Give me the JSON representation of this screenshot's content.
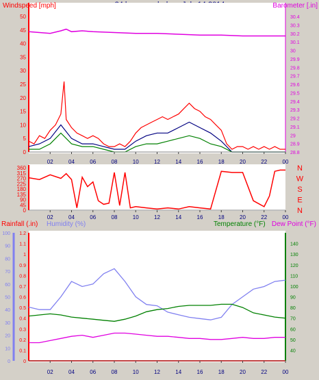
{
  "title": "24 hour graph day : July 14 2014",
  "colors": {
    "wind": "#ff0000",
    "gust_mid": "#000080",
    "wind_low": "#008000",
    "barometer": "#e000e0",
    "direction": "#ff0000",
    "rainfall": "#ff0000",
    "humidity": "#8080f0",
    "temperature": "#008000",
    "dewpoint": "#e000e0",
    "rain_dots": "#ffff00",
    "axis_labels": "#000080",
    "plot_bg": "#ffffff",
    "frame_bg": "#d4d0c8"
  },
  "chart_data": [
    {
      "type": "line",
      "name": "wind-barometer",
      "ylabel_left": "Windspeed [mph]",
      "ylabel_right": "Barometer [.in]",
      "ylim_left": [
        0,
        50
      ],
      "yticks_left": [
        0,
        5,
        10,
        15,
        20,
        25,
        30,
        35,
        40,
        45,
        50
      ],
      "ylim_right": [
        28.8,
        30.4
      ],
      "yticks_right": [
        "28.8",
        "28.9",
        "29",
        "29.1",
        "29.2",
        "29.3",
        "29.4",
        "29.5",
        "29.6",
        "29.7",
        "29.8",
        "29.9",
        "30",
        "30.1",
        "30.2",
        "30.3",
        "30.4"
      ],
      "x_ticks": [
        "02",
        "04",
        "06",
        "08",
        "10",
        "12",
        "14",
        "16",
        "18",
        "20",
        "22",
        "00"
      ],
      "series": [
        {
          "name": "Windspeed",
          "color_key": "wind",
          "x": [
            0,
            0.5,
            1,
            1.5,
            2,
            2.5,
            3,
            3.3,
            3.5,
            4,
            4.5,
            5,
            5.5,
            6,
            6.5,
            7,
            7.5,
            8,
            8.5,
            9,
            9.5,
            10,
            10.5,
            11,
            11.5,
            12,
            12.5,
            13,
            13.5,
            14,
            14.5,
            15,
            15.5,
            16,
            16.5,
            17,
            17.5,
            18,
            18.5,
            19,
            19.5,
            20,
            20.5,
            21,
            21.5,
            22,
            22.5,
            23,
            23.5,
            24
          ],
          "values": [
            4,
            3,
            6,
            5,
            8,
            10,
            14,
            26,
            12,
            9,
            7,
            6,
            5,
            6,
            5,
            3,
            2,
            2,
            3,
            2,
            4,
            7,
            9,
            10,
            11,
            12,
            13,
            12,
            13,
            14,
            16,
            18,
            16,
            15,
            13,
            12,
            10,
            8,
            3,
            1,
            2,
            2,
            1,
            2,
            1,
            2,
            1,
            2,
            1,
            1
          ]
        },
        {
          "name": "Gust average",
          "color_key": "gust_mid",
          "x": [
            0,
            1,
            2,
            3,
            4,
            5,
            6,
            7,
            8,
            9,
            10,
            11,
            12,
            13,
            14,
            15,
            16,
            17,
            18,
            19,
            20,
            21,
            22,
            23,
            24
          ],
          "values": [
            2,
            3,
            5,
            10,
            5,
            3,
            3,
            2,
            1,
            1,
            4,
            6,
            7,
            7,
            9,
            11,
            9,
            7,
            4,
            0,
            0,
            0,
            0,
            0,
            0
          ]
        },
        {
          "name": "Wind low",
          "color_key": "wind_low",
          "x": [
            0,
            1,
            2,
            3,
            4,
            5,
            6,
            7,
            8,
            9,
            10,
            11,
            12,
            13,
            14,
            15,
            16,
            17,
            18,
            19,
            20,
            21,
            22,
            23,
            24
          ],
          "values": [
            1,
            1,
            3,
            7,
            3,
            2,
            2,
            1,
            0,
            0,
            2,
            3,
            3,
            4,
            5,
            6,
            5,
            3,
            2,
            0,
            0,
            0,
            0,
            0,
            0
          ]
        },
        {
          "name": "Barometer",
          "axis": "right",
          "color_key": "barometer",
          "x": [
            0,
            1,
            2,
            3,
            3.5,
            4,
            5,
            6,
            8,
            10,
            12,
            14,
            16,
            18,
            20,
            22,
            24
          ],
          "values": [
            30.22,
            30.21,
            30.2,
            30.23,
            30.25,
            30.22,
            30.23,
            30.22,
            30.21,
            30.2,
            30.2,
            30.19,
            30.18,
            30.18,
            30.17,
            30.17,
            30.17
          ]
        }
      ]
    },
    {
      "type": "line",
      "name": "wind-direction",
      "ylim": [
        0,
        360
      ],
      "yticks_left": [
        0,
        45,
        90,
        135,
        180,
        225,
        270,
        315,
        360
      ],
      "compass": [
        "N",
        "W",
        "S",
        "E",
        "N"
      ],
      "x_ticks": [
        "02",
        "04",
        "06",
        "08",
        "10",
        "12",
        "14",
        "16",
        "18",
        "20",
        "22",
        "00"
      ],
      "series": [
        {
          "name": "Wind direction",
          "color_key": "direction",
          "x": [
            0,
            1,
            2,
            3,
            3.5,
            4,
            4.5,
            5,
            5.5,
            6,
            6.5,
            7,
            7.5,
            8,
            8.5,
            9,
            9.5,
            10,
            11,
            12,
            13,
            14,
            15,
            16,
            17,
            18,
            19,
            20,
            21,
            22,
            22.5,
            23,
            23.5,
            24
          ],
          "values": [
            275,
            260,
            300,
            270,
            310,
            260,
            20,
            280,
            200,
            240,
            80,
            50,
            60,
            320,
            40,
            320,
            20,
            30,
            20,
            10,
            20,
            10,
            30,
            20,
            10,
            330,
            320,
            320,
            80,
            30,
            120,
            330,
            340,
            340
          ]
        }
      ]
    },
    {
      "type": "line",
      "name": "rain-humidity-temperature",
      "ylabel_left": "Rainfall (.in)",
      "ylabel_left2": "Humidity (%)",
      "ylabel_right": "Temperature (°F)",
      "ylabel_right2": "Dew Point (°F)",
      "rain_ylim": [
        0,
        1.2
      ],
      "rain_yticks": [
        "0",
        "0.1",
        "0.2",
        "0.3",
        "0.4",
        "0.5",
        "0.6",
        "0.7",
        "0.8",
        "0.9",
        "1",
        "1.1",
        "1.2"
      ],
      "humidity_ylim": [
        0,
        100
      ],
      "humidity_yticks": [
        0,
        10,
        20,
        30,
        40,
        50,
        60,
        70,
        80,
        90,
        100
      ],
      "temp_ylim": [
        30,
        150
      ],
      "temp_yticks": [
        40,
        50,
        60,
        70,
        80,
        90,
        100,
        110,
        120,
        130,
        140
      ],
      "x_ticks": [
        "02",
        "04",
        "06",
        "08",
        "10",
        "12",
        "14",
        "16",
        "18",
        "20",
        "22",
        "00"
      ],
      "series": [
        {
          "name": "Humidity",
          "axis": "humidity",
          "color_key": "humidity",
          "x": [
            0,
            1,
            2,
            3,
            4,
            5,
            6,
            7,
            8,
            9,
            10,
            11,
            12,
            13,
            14,
            15,
            16,
            17,
            18,
            19,
            20,
            21,
            22,
            23,
            24
          ],
          "values": [
            42,
            40,
            40,
            50,
            62,
            58,
            60,
            68,
            72,
            62,
            50,
            44,
            43,
            38,
            36,
            34,
            33,
            32,
            34,
            44,
            50,
            56,
            58,
            62,
            63
          ]
        },
        {
          "name": "Temperature",
          "axis": "temp",
          "color_key": "temperature",
          "x": [
            0,
            1,
            2,
            3,
            4,
            5,
            6,
            7,
            8,
            9,
            10,
            11,
            12,
            13,
            14,
            15,
            16,
            17,
            18,
            19,
            20,
            21,
            22,
            23,
            24
          ],
          "values": [
            72,
            73,
            74,
            73,
            71,
            70,
            69,
            68,
            67,
            69,
            72,
            76,
            78,
            79,
            81,
            82,
            82,
            82,
            83,
            83,
            80,
            75,
            73,
            71,
            70
          ]
        },
        {
          "name": "Dew Point",
          "axis": "temp",
          "color_key": "dewpoint",
          "x": [
            0,
            1,
            2,
            3,
            4,
            5,
            6,
            7,
            8,
            9,
            10,
            11,
            12,
            13,
            14,
            15,
            16,
            17,
            18,
            19,
            20,
            21,
            22,
            23,
            24
          ],
          "values": [
            47,
            47,
            49,
            51,
            53,
            54,
            52,
            54,
            56,
            56,
            55,
            54,
            53,
            53,
            52,
            51,
            51,
            50,
            50,
            51,
            52,
            51,
            51,
            52,
            52
          ]
        },
        {
          "name": "Rainfall",
          "axis": "rain",
          "color_key": "rainfall",
          "x": [
            0,
            24
          ],
          "values": [
            0,
            0
          ]
        }
      ]
    }
  ]
}
